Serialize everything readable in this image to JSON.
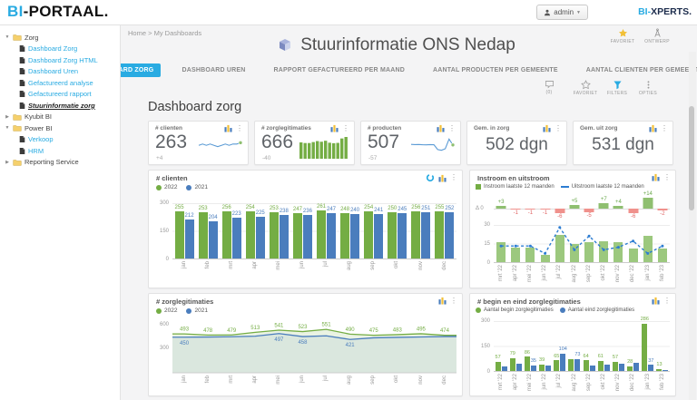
{
  "colors": {
    "accent": "#29abe2",
    "green": "#74ad44",
    "green_light": "#9cc87e",
    "blue": "#4a7dbd",
    "blue_line": "#2d7dd2",
    "red": "#f0918c",
    "red_text": "#e06666",
    "green_text": "#6aa84c",
    "yellow": "#f2c037"
  },
  "topbar": {
    "logo_accent": "BI",
    "logo_rest": "-PORTAAL.",
    "user_label": "admin",
    "brand_accent": "BI-",
    "brand_rest": "XPERTS."
  },
  "breadcrumb": {
    "home": "Home",
    "separator": ">",
    "current": "My Dashboards"
  },
  "header_actions": {
    "favorite_label": "FAVORIET",
    "design_label": "ONTWERP"
  },
  "sidebar": {
    "items": [
      {
        "label": "Zorg",
        "type": "folder",
        "expanded": true
      },
      {
        "label": "Dashboard Zorg",
        "type": "doc"
      },
      {
        "label": "Dashboard Zorg HTML",
        "type": "doc"
      },
      {
        "label": "Dashboard Uren",
        "type": "doc"
      },
      {
        "label": "Gefactureerd analyse",
        "type": "doc"
      },
      {
        "label": "Gefactureerd rapport",
        "type": "doc"
      },
      {
        "label": "Stuurinformatie zorg",
        "type": "doc",
        "selected": true
      },
      {
        "label": "Kyubit BI",
        "type": "folder",
        "expanded": false
      },
      {
        "label": "Power BI",
        "type": "folder",
        "expanded": true
      },
      {
        "label": "Verkoop",
        "type": "doc"
      },
      {
        "label": "HRM",
        "type": "doc"
      },
      {
        "label": "Reporting Service",
        "type": "folder",
        "expanded": false
      }
    ]
  },
  "page": {
    "title": "Stuurinformatie ONS Nedap",
    "section_title": "Dashboard zorg"
  },
  "tabs": [
    {
      "label": "DASHBOARD ZORG",
      "active": true
    },
    {
      "label": "DASHBOARD UREN",
      "active": false
    },
    {
      "label": "RAPPORT GEFACTUREERD PER MAAND",
      "active": false
    },
    {
      "label": "AANTAL PRODUCTEN PER GEMEENTE",
      "active": false
    },
    {
      "label": "AANTAL CLIENTEN PER GEMEENTE",
      "active": false
    }
  ],
  "toolbar": {
    "comments_label": "(0)",
    "favorite_label": "FAVORIET",
    "filters_label": "FILTERS",
    "options_label": "OPTIES"
  },
  "kpis": [
    {
      "title": "# clienten",
      "value": "263",
      "delta": "+4"
    },
    {
      "title": "# zorglegitimaties",
      "value": "666",
      "delta": "-40"
    },
    {
      "title": "# producten",
      "value": "507",
      "delta": "-57"
    },
    {
      "title": "Gem. in zorg",
      "value": "502 dgn"
    },
    {
      "title": "Gem. uit zorg",
      "value": "531 dgn"
    }
  ],
  "chart_data": [
    {
      "id": "clienten",
      "type": "bar",
      "title": "# clienten",
      "legend": [
        "2022",
        "2021"
      ],
      "categories": [
        "jan",
        "feb",
        "mrt",
        "apr",
        "mei",
        "jun",
        "jul",
        "aug",
        "sep",
        "okt",
        "nov",
        "dec"
      ],
      "series": [
        {
          "name": "2022",
          "values": [
            255,
            253,
            256,
            254,
            253,
            247,
            261,
            248,
            254,
            250,
            256,
            255
          ]
        },
        {
          "name": "2021",
          "values": [
            212,
            204,
            223,
            225,
            238,
            236,
            247,
            240,
            241,
            245,
            251,
            252
          ]
        }
      ],
      "ylim": [
        0,
        300
      ],
      "yticks": [
        0,
        150,
        300
      ],
      "legend_position": "top"
    },
    {
      "id": "instroom_uitstroom",
      "type": "bar+line",
      "title": "Instroom en uitstroom",
      "legend": [
        "Instroom laatste 12 maanden",
        "Uitstroom laatste 12 maanden"
      ],
      "categories": [
        "mrt '22",
        "apr '22",
        "mei '22",
        "jun '22",
        "jul '22",
        "aug '22",
        "sep '22",
        "okt '22",
        "nov '22",
        "dec '22",
        "jan '23",
        "feb '23"
      ],
      "delta": [
        3,
        -1,
        -1,
        -1,
        -6,
        5,
        -5,
        7,
        4,
        -6,
        14,
        -2
      ],
      "delta_axis_label": "Δ 0",
      "series": [
        {
          "name": "Instroom laatste 12 maanden",
          "values": [
            16,
            12,
            12,
            6,
            22,
            15,
            16,
            17,
            16,
            11,
            21,
            11
          ]
        },
        {
          "name": "Uitstroom laatste 12 maanden",
          "values": [
            13,
            13,
            13,
            7,
            28,
            10,
            21,
            10,
            12,
            17,
            7,
            13
          ]
        }
      ],
      "ylim": [
        0,
        30
      ],
      "yticks": [
        0,
        15,
        30
      ],
      "legend_position": "top"
    },
    {
      "id": "zorglegitimaties",
      "type": "area",
      "title": "# zorglegitimaties",
      "legend": [
        "2022",
        "2021"
      ],
      "categories": [
        "jan",
        "feb",
        "mrt",
        "apr",
        "mei",
        "jun",
        "jul",
        "aug",
        "sep",
        "okt",
        "nov",
        "dec"
      ],
      "series": [
        {
          "name": "2022",
          "values": [
            493,
            478,
            479,
            513,
            541,
            523,
            551,
            490,
            475,
            483,
            495,
            474
          ],
          "labels": [
            493,
            478,
            479,
            513,
            541,
            523,
            551,
            490,
            475,
            483,
            495,
            474
          ]
        },
        {
          "name": "2021",
          "values": [
            450,
            452,
            456,
            463,
            497,
            458,
            468,
            421,
            442,
            448,
            453,
            458
          ],
          "labels": [
            450,
            null,
            null,
            null,
            497,
            458,
            null,
            421,
            null,
            null,
            null,
            null
          ]
        }
      ],
      "ylim": [
        0,
        600
      ],
      "yticks": [
        300,
        600
      ],
      "legend_position": "top"
    },
    {
      "id": "begin_eind",
      "type": "bar",
      "title": "# begin en eind zorglegitimaties",
      "legend": [
        "Aantal begin zorglegitimaties",
        "Aantal eind zorglegitimaties"
      ],
      "categories": [
        "mrt '22",
        "apr '22",
        "mei '22",
        "jun '22",
        "jul '22",
        "aug '22",
        "sep '22",
        "okt '22",
        "nov '22",
        "dec '22",
        "jan '23",
        "feb '23"
      ],
      "series": [
        {
          "name": "Aantal begin zorglegitimaties",
          "values": [
            57,
            79,
            86,
            39,
            65,
            72,
            64,
            61,
            57,
            28,
            286,
            13
          ],
          "labels": [
            57,
            79,
            86,
            39,
            65,
            null,
            64,
            61,
            57,
            28,
            286,
            13
          ]
        },
        {
          "name": "Aantal eind zorglegitimaties",
          "values": [
            30,
            45,
            35,
            33,
            104,
            73,
            35,
            40,
            42,
            48,
            37,
            2
          ],
          "labels": [
            null,
            null,
            35,
            null,
            104,
            73,
            null,
            null,
            null,
            null,
            37,
            null
          ]
        }
      ],
      "ylim": [
        0,
        300
      ],
      "yticks": [
        0,
        150,
        300
      ],
      "legend_position": "top"
    },
    {
      "id": "clienten_spark",
      "type": "line",
      "title": "# clienten trend",
      "values": [
        261,
        262,
        261,
        262,
        261,
        260,
        261,
        262,
        261,
        262,
        262,
        263
      ]
    },
    {
      "id": "zorglegitimaties_spark",
      "type": "bar",
      "title": "# zorglegitimaties trend",
      "values": [
        500,
        480,
        480,
        510,
        540,
        520,
        550,
        490,
        475,
        485,
        620,
        666
      ]
    },
    {
      "id": "producten_spark",
      "type": "line",
      "title": "# producten trend",
      "values": [
        512,
        510,
        511,
        509,
        508,
        510,
        509,
        462,
        455,
        470,
        564,
        507
      ]
    }
  ]
}
